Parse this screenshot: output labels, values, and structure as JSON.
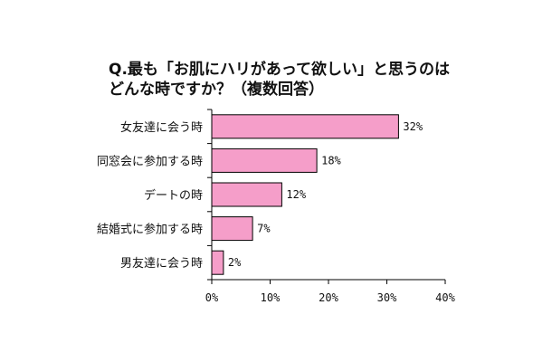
{
  "chart_data": {
    "type": "bar",
    "orientation": "horizontal",
    "title_lines": [
      "Q.最も「お肌にハリがあって欲しい」と思うのは",
      "どんな時ですか？（複数回答）"
    ],
    "categories": [
      "女友達に会う時",
      "同窓会に参加する時",
      "デートの時",
      "結婚式に参加する時",
      "男友達に会う時"
    ],
    "values": [
      32,
      18,
      12,
      7,
      2
    ],
    "value_labels": [
      "32%",
      "18%",
      "12%",
      "7%",
      "2%"
    ],
    "xlim": [
      0,
      40
    ],
    "ticks": [
      0,
      10,
      20,
      30,
      40
    ],
    "tick_labels": [
      "0%",
      "10%",
      "20%",
      "30%",
      "40%"
    ],
    "grid": false,
    "colors": {
      "bar_fill": "#f59ec9",
      "bar_stroke": "#000000"
    }
  }
}
